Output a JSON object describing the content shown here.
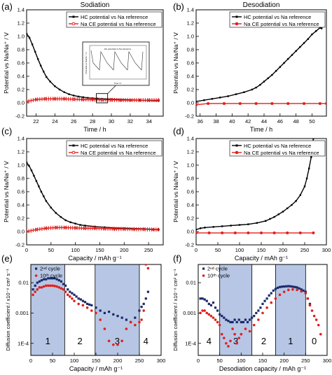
{
  "chart_data": [
    {
      "panel": "(a)",
      "type": "line",
      "title": "Sodiation",
      "xlabel": "Time / h",
      "ylabel": "Potential vs Na/Na⁺ / V",
      "xlim": [
        21,
        35.5
      ],
      "ylim": [
        -0.2,
        1.4
      ],
      "xticks": [
        22,
        24,
        26,
        28,
        30,
        32,
        34
      ],
      "yticks": [
        -0.2,
        0.0,
        0.2,
        0.4,
        0.6,
        0.8,
        1.0,
        1.2,
        1.4
      ],
      "legend": "top-right",
      "series": [
        {
          "name": "HC potential vs Na reference",
          "color": "#000000",
          "marker": "square",
          "x": [
            21.0,
            21.3,
            21.6,
            21.9,
            22.2,
            22.5,
            22.8,
            23.1,
            23.5,
            24.0,
            24.5,
            25.0,
            25.5,
            26.0,
            26.5,
            27.0,
            27.5,
            28.0,
            28.5,
            29.0,
            30.0,
            31.0,
            32.0,
            33.0,
            34.0,
            35.0
          ],
          "y": [
            1.04,
            0.98,
            0.88,
            0.77,
            0.66,
            0.56,
            0.47,
            0.39,
            0.32,
            0.25,
            0.2,
            0.16,
            0.13,
            0.11,
            0.095,
            0.085,
            0.075,
            0.07,
            0.065,
            0.06,
            0.055,
            0.05,
            0.045,
            0.04,
            0.035,
            0.03
          ]
        },
        {
          "name": "Na CE potential vs Na reference",
          "color": "#e0201e",
          "marker": "circle-open",
          "x": [
            21.0,
            22.0,
            23.0,
            24.0,
            25.0,
            26.0,
            27.0,
            28.0,
            29.0,
            30.0,
            31.0,
            32.0,
            33.0,
            34.0,
            35.0
          ],
          "y": [
            0.02,
            0.05,
            0.06,
            0.06,
            0.06,
            0.055,
            0.05,
            0.05,
            0.045,
            0.045,
            0.04,
            0.04,
            0.04,
            0.04,
            0.04
          ],
          "band": 0.06
        }
      ]
    },
    {
      "panel": "(b)",
      "type": "line",
      "title": "Desodiation",
      "xlabel": "Time / h",
      "ylabel": "Potential vs Na/Na⁺ / V",
      "xlim": [
        35.5,
        51.8
      ],
      "ylim": [
        -0.2,
        1.4
      ],
      "xticks": [
        36,
        38,
        40,
        42,
        44,
        46,
        48,
        50
      ],
      "yticks": [
        -0.2,
        0.0,
        0.2,
        0.4,
        0.6,
        0.8,
        1.0,
        1.2,
        1.4
      ],
      "legend": "top-right",
      "series": [
        {
          "name": "HC potential vs Na reference",
          "color": "#000000",
          "marker": "square",
          "x": [
            35.5,
            36.5,
            37.5,
            38.5,
            39.5,
            40.5,
            41.5,
            42.5,
            43.0,
            43.5,
            44.0,
            44.5,
            45.0,
            45.5,
            46.0,
            46.5,
            47.0,
            47.5,
            48.0,
            48.5,
            49.0,
            49.5,
            50.0,
            50.5,
            51.0,
            51.2,
            51.5
          ],
          "y": [
            0.02,
            0.04,
            0.06,
            0.08,
            0.1,
            0.13,
            0.16,
            0.2,
            0.23,
            0.27,
            0.32,
            0.37,
            0.42,
            0.48,
            0.54,
            0.6,
            0.66,
            0.72,
            0.78,
            0.84,
            0.9,
            0.96,
            1.03,
            1.08,
            1.13,
            1.12,
            1.28
          ]
        },
        {
          "name": "Na CE potential vs Na reference",
          "color": "#e0201e",
          "marker": "circle",
          "x": [
            35.5,
            37.0,
            39.0,
            41.0,
            43.0,
            45.0,
            47.0,
            49.0,
            51.0,
            51.8
          ],
          "y": [
            -0.03,
            -0.01,
            -0.01,
            -0.01,
            -0.01,
            -0.01,
            -0.01,
            -0.01,
            -0.01,
            -0.01
          ]
        }
      ]
    },
    {
      "panel": "(c)",
      "type": "line",
      "xlabel": "Capacity / mAh g⁻¹",
      "ylabel": "Potential vs Na/Na⁺ / V",
      "xlim": [
        0,
        280
      ],
      "ylim": [
        -0.2,
        1.4
      ],
      "xticks": [
        0,
        50,
        100,
        150,
        200,
        250
      ],
      "yticks": [
        -0.2,
        0.0,
        0.2,
        0.4,
        0.6,
        0.8,
        1.0,
        1.2,
        1.4
      ],
      "legend": "top-right",
      "series": [
        {
          "name": "HC potential vs Na reference",
          "color": "#000000",
          "marker": "square",
          "x": [
            0,
            5,
            10,
            15,
            20,
            25,
            30,
            35,
            40,
            50,
            60,
            70,
            80,
            90,
            100,
            110,
            120,
            140,
            160,
            180,
            200,
            220,
            240,
            260,
            270
          ],
          "y": [
            1.04,
            0.99,
            0.92,
            0.84,
            0.76,
            0.68,
            0.6,
            0.53,
            0.46,
            0.36,
            0.28,
            0.22,
            0.17,
            0.14,
            0.12,
            0.1,
            0.09,
            0.075,
            0.065,
            0.055,
            0.05,
            0.045,
            0.04,
            0.035,
            0.03
          ]
        },
        {
          "name": "Na CE potential vs Na reference",
          "color": "#e0201e",
          "marker": "circle-open",
          "x": [
            0,
            20,
            40,
            60,
            80,
            100,
            120,
            140,
            160,
            180,
            200,
            220,
            240,
            260,
            270
          ],
          "y": [
            0.0,
            0.03,
            0.05,
            0.06,
            0.06,
            0.055,
            0.05,
            0.05,
            0.045,
            0.04,
            0.04,
            0.035,
            0.035,
            0.03,
            0.03
          ],
          "band": 0.06
        }
      ]
    },
    {
      "panel": "(d)",
      "type": "line",
      "xlabel": "Capacity / mAh g⁻¹",
      "ylabel": "Potential vs Na/Na⁺ / V",
      "xlim": [
        0,
        300
      ],
      "ylim": [
        -0.2,
        1.4
      ],
      "xticks": [
        0,
        50,
        100,
        150,
        200,
        250,
        300
      ],
      "yticks": [
        -0.2,
        0.0,
        0.2,
        0.4,
        0.6,
        0.8,
        1.0,
        1.2,
        1.4
      ],
      "legend": "top-right",
      "series": [
        {
          "name": "HC potential vs Na reference",
          "color": "#000000",
          "marker": "square",
          "x": [
            0,
            10,
            20,
            40,
            60,
            80,
            100,
            120,
            140,
            160,
            170,
            180,
            190,
            200,
            210,
            220,
            230,
            240,
            250,
            255,
            260,
            265,
            270
          ],
          "y": [
            0.03,
            0.05,
            0.06,
            0.07,
            0.08,
            0.09,
            0.1,
            0.11,
            0.13,
            0.16,
            0.19,
            0.22,
            0.26,
            0.3,
            0.35,
            0.4,
            0.46,
            0.55,
            0.68,
            0.8,
            0.95,
            1.12,
            1.4
          ]
        },
        {
          "name": "Na CE potential vs Na reference",
          "color": "#e0201e",
          "marker": "circle",
          "x": [
            0,
            30,
            60,
            90,
            120,
            150,
            180,
            210,
            240,
            270
          ],
          "y": [
            -0.02,
            -0.02,
            -0.02,
            -0.02,
            -0.02,
            -0.02,
            -0.02,
            -0.02,
            -0.02,
            -0.02
          ]
        }
      ]
    },
    {
      "panel": "(e)",
      "type": "scatter",
      "yscale": "log",
      "xlabel": "Capacity / mAh g⁻¹",
      "ylabel": "Diffusion coefficient / x10⁻⁸ cm² s⁻¹",
      "xlim": [
        0,
        300
      ],
      "ylim": [
        4e-05,
        0.04
      ],
      "xticks": [
        0,
        50,
        100,
        150,
        200,
        250,
        300
      ],
      "yticks": [
        0.0001,
        0.001,
        0.01
      ],
      "ytick_labels": [
        "1E-4",
        "0.001",
        "0.01"
      ],
      "legend": "top-left",
      "regions": [
        {
          "label": "1",
          "x": [
            0,
            78
          ],
          "shaded": true
        },
        {
          "label": "2",
          "x": [
            78,
            148
          ],
          "shaded": false
        },
        {
          "label": "3",
          "x": [
            148,
            250
          ],
          "shaded": true
        },
        {
          "label": "4",
          "x": [
            250,
            280
          ],
          "shaded": false
        }
      ],
      "series": [
        {
          "name": "2nd cycle",
          "color": "#1a2a6c",
          "marker": "square",
          "x": [
            5,
            10,
            15,
            20,
            25,
            30,
            35,
            40,
            45,
            50,
            55,
            60,
            65,
            70,
            75,
            80,
            85,
            90,
            95,
            100,
            105,
            110,
            115,
            120,
            125,
            130,
            135,
            140,
            150,
            160,
            170,
            180,
            190,
            200,
            210,
            220,
            230,
            240,
            250,
            255,
            260,
            265,
            270
          ],
          "y": [
            0.006,
            0.008,
            0.01,
            0.011,
            0.012,
            0.013,
            0.013,
            0.014,
            0.014,
            0.014,
            0.014,
            0.013,
            0.012,
            0.011,
            0.009,
            0.008,
            0.006,
            0.005,
            0.0045,
            0.004,
            0.0035,
            0.003,
            0.0028,
            0.0025,
            0.0023,
            0.002,
            0.0019,
            0.0018,
            0.0015,
            0.0012,
            0.001,
            0.0011,
            0.0009,
            0.0008,
            0.0007,
            0.0006,
            0.0005,
            0.0007,
            0.0012,
            0.0016,
            0.002,
            0.003,
            0.005
          ]
        },
        {
          "name": "10th cycle",
          "color": "#e0201e",
          "marker": "circle",
          "x": [
            5,
            10,
            15,
            20,
            25,
            30,
            35,
            40,
            45,
            50,
            55,
            60,
            65,
            70,
            75,
            80,
            85,
            90,
            95,
            100,
            110,
            120,
            130,
            140,
            150,
            160,
            170,
            180,
            190,
            200,
            210,
            220,
            230,
            240,
            250,
            255,
            260,
            265,
            270
          ],
          "y": [
            0.004,
            0.005,
            0.006,
            0.007,
            0.007,
            0.0075,
            0.008,
            0.008,
            0.008,
            0.008,
            0.0078,
            0.0075,
            0.007,
            0.0065,
            0.006,
            0.005,
            0.004,
            0.0035,
            0.003,
            0.0025,
            0.002,
            0.0018,
            0.0015,
            0.0012,
            0.001,
            0.0006,
            0.0003,
            0.00012,
            9e-05,
            9e-05,
            0.00012,
            0.0003,
            0.0005,
            0.0004,
            0.0005,
            0.0006,
            0.0012,
            0.04,
            0.03
          ]
        }
      ]
    },
    {
      "panel": "(f)",
      "type": "scatter",
      "yscale": "log",
      "xlabel": "Desodiation capacity / mAh g⁻¹",
      "ylabel": "Diffusion coefficient / x10⁻⁸ cm² s⁻¹",
      "xlim": [
        0,
        300
      ],
      "ylim": [
        4e-05,
        0.04
      ],
      "xticks": [
        0,
        50,
        100,
        150,
        200,
        250,
        300
      ],
      "yticks": [
        0.0001,
        0.001,
        0.01
      ],
      "ytick_labels": [
        "1E-4",
        "0.001",
        "0.01"
      ],
      "legend": "top-left",
      "regions": [
        {
          "label": "4",
          "x": [
            0,
            50
          ],
          "shaded": false
        },
        {
          "label": "3",
          "x": [
            50,
            125
          ],
          "shaded": true
        },
        {
          "label": "2",
          "x": [
            125,
            180
          ],
          "shaded": false
        },
        {
          "label": "1",
          "x": [
            180,
            250
          ],
          "shaded": true
        },
        {
          "label": "0",
          "x": [
            250,
            290
          ],
          "shaded": false
        }
      ],
      "series": [
        {
          "name": "2nd cycle",
          "color": "#1a2a6c",
          "marker": "square",
          "x": [
            5,
            10,
            15,
            20,
            25,
            30,
            35,
            40,
            45,
            50,
            55,
            60,
            65,
            70,
            75,
            80,
            85,
            90,
            95,
            100,
            105,
            110,
            115,
            120,
            125,
            130,
            135,
            140,
            145,
            150,
            155,
            160,
            165,
            170,
            175,
            180,
            185,
            190,
            195,
            200,
            205,
            210,
            215,
            220,
            225,
            230,
            235,
            240,
            245,
            250,
            255,
            260
          ],
          "y": [
            0.003,
            0.003,
            0.0028,
            0.0025,
            0.002,
            0.0018,
            0.0022,
            0.0015,
            0.0012,
            0.0009,
            0.0008,
            0.0007,
            0.0006,
            0.00055,
            0.0005,
            0.0005,
            0.0006,
            0.0005,
            0.0006,
            0.0005,
            0.0005,
            0.0006,
            0.0005,
            0.0006,
            0.0007,
            0.0008,
            0.001,
            0.0012,
            0.0015,
            0.002,
            0.0025,
            0.003,
            0.0038,
            0.0045,
            0.0055,
            0.0062,
            0.0068,
            0.0072,
            0.0074,
            0.0075,
            0.0076,
            0.0077,
            0.0076,
            0.0074,
            0.0072,
            0.007,
            0.0065,
            0.006,
            0.0055,
            0.005,
            0.003,
            0.002
          ]
        },
        {
          "name": "10th cycle",
          "color": "#e0201e",
          "marker": "circle",
          "x": [
            5,
            10,
            15,
            20,
            25,
            30,
            35,
            40,
            45,
            50,
            55,
            60,
            65,
            70,
            75,
            80,
            85,
            90,
            95,
            100,
            110,
            120,
            130,
            140,
            150,
            160,
            170,
            180,
            190,
            200,
            210,
            220,
            230,
            240,
            250,
            255,
            260,
            265,
            270,
            275,
            280,
            285
          ],
          "y": [
            0.001,
            0.0012,
            0.0012,
            0.001,
            0.0009,
            0.0008,
            0.0007,
            0.0006,
            0.0005,
            0.0004,
            0.0002,
            0.00015,
            0.0001,
            8e-05,
            0.00012,
            0.0003,
            0.0002,
            0.0001,
            0.00015,
            0.0002,
            0.0003,
            0.00025,
            0.0004,
            0.0006,
            0.001,
            0.0015,
            0.0022,
            0.003,
            0.004,
            0.005,
            0.0058,
            0.006,
            0.0058,
            0.0052,
            0.0045,
            0.003,
            0.0018,
            0.0012,
            0.0008,
            0.0006,
            0.0004,
            0.0002
          ]
        }
      ]
    }
  ],
  "panel_labels": [
    "(a)",
    "(b)",
    "(c)",
    "(d)",
    "(e)",
    "(f)"
  ],
  "inset": {
    "title": "HC potential vs Na reference",
    "xlabel": "Time / h",
    "ylabel": "Potential vs Na/Na⁺ / V"
  },
  "legend_e_2nd": "2ⁿᵈ cycle",
  "legend_e_10th": "10ᵗʰ cycle"
}
